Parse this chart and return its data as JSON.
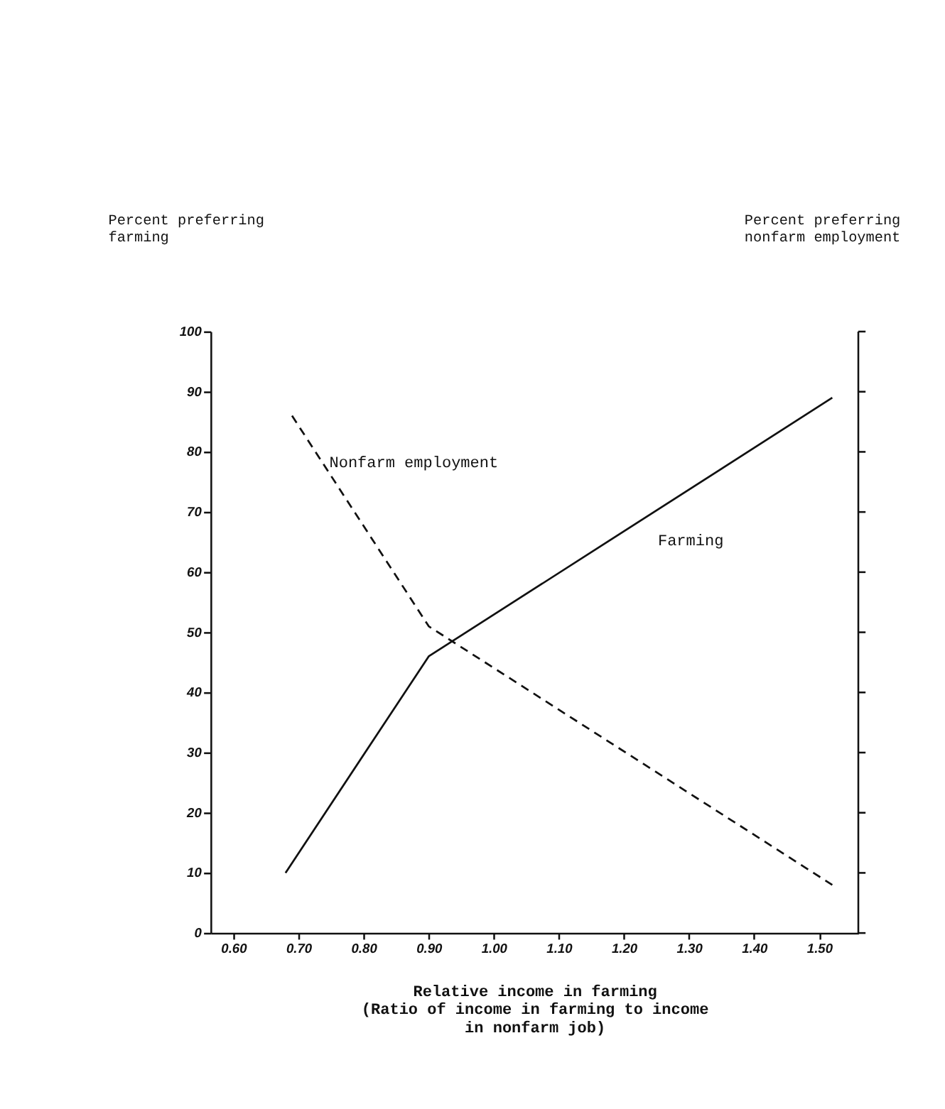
{
  "chart_data": {
    "type": "line",
    "xlabel": "Relative income in farming\n(Ratio of income in farming to income\nin nonfarm job)",
    "annotations": [
      "Percent preferring\nfarming",
      "Percent preferring\nnonfarm employment"
    ],
    "xlim": [
      0.565,
      1.56
    ],
    "xticks": [
      {
        "value": 0.6,
        "label": "0.60"
      },
      {
        "value": 0.7,
        "label": "0.70"
      },
      {
        "value": 0.8,
        "label": "0.80"
      },
      {
        "value": 0.9,
        "label": "0.90"
      },
      {
        "value": 1.0,
        "label": "1.00"
      },
      {
        "value": 1.1,
        "label": "1.10"
      },
      {
        "value": 1.2,
        "label": "1.20"
      },
      {
        "value": 1.3,
        "label": "1.30"
      },
      {
        "value": 1.4,
        "label": "1.40"
      },
      {
        "value": 1.5,
        "label": "1.50"
      }
    ],
    "ylim": [
      0,
      100
    ],
    "yticks": [
      0,
      10,
      20,
      30,
      40,
      50,
      60,
      70,
      80,
      90,
      100
    ],
    "grid": false,
    "marker": "none",
    "series": [
      {
        "name": "Farming",
        "color": "#111111",
        "line_style": "solid",
        "x": [
          0.68,
          0.9,
          1.52
        ],
        "values": [
          10,
          46,
          89
        ]
      },
      {
        "name": "Nonfarm employment",
        "color": "#111111",
        "line_style": "dashed",
        "x": [
          0.69,
          0.9,
          1.52
        ],
        "values": [
          86,
          51,
          8
        ]
      }
    ]
  }
}
